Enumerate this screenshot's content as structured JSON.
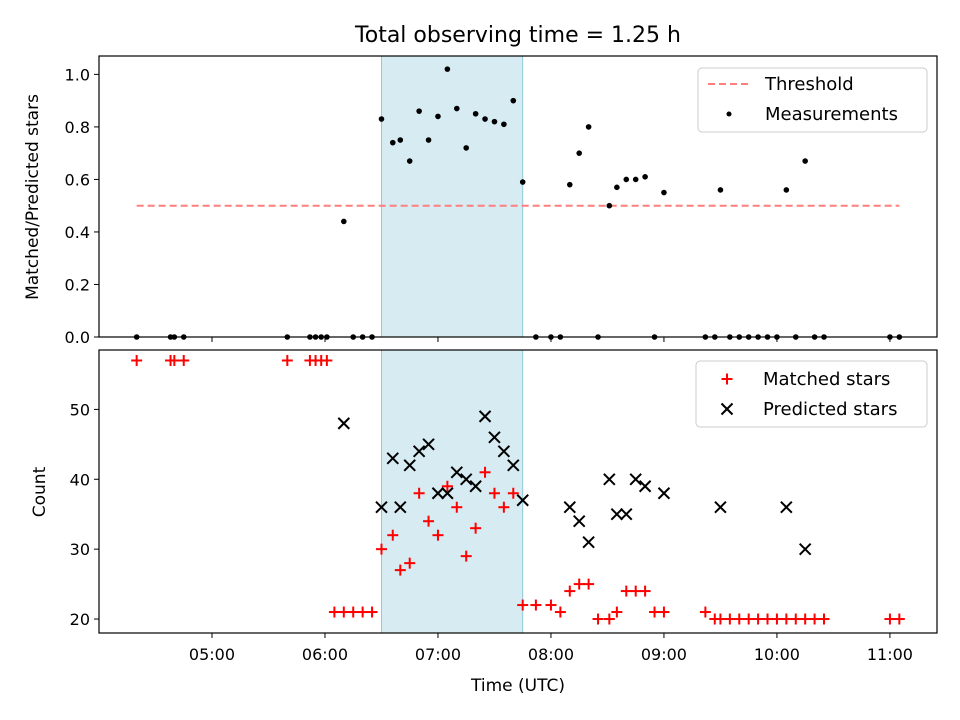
{
  "figure_title": "Total observing time = 1.25 h",
  "chart_data": [
    {
      "type": "scatter",
      "panel": "top",
      "ylabel": "Matched/Predicted stars",
      "ylim": [
        0,
        1.07
      ],
      "yticks": [
        0.0,
        0.2,
        0.4,
        0.6,
        0.8,
        1.0
      ],
      "ytick_labels": [
        "0.0",
        "0.2",
        "0.4",
        "0.6",
        "0.8",
        "1.0"
      ],
      "xlim": [
        "04:00",
        "11:25"
      ],
      "highlight_span": [
        "06:30",
        "07:45"
      ],
      "legend": "top-right",
      "series": [
        {
          "name": "Threshold",
          "kind": "dashed-line",
          "color": "#ff7f7f",
          "x": [
            "04:20",
            "11:05"
          ],
          "y": [
            0.5,
            0.5
          ]
        },
        {
          "name": "Measurements",
          "kind": "dots",
          "color": "#000000",
          "x": [
            "04:20",
            "04:38",
            "04:40",
            "04:45",
            "05:40",
            "05:52",
            "05:55",
            "05:58",
            "06:01",
            "06:10",
            "06:15",
            "06:20",
            "06:25",
            "06:30",
            "06:36",
            "06:40",
            "06:45",
            "06:50",
            "06:55",
            "07:00",
            "07:05",
            "07:10",
            "07:15",
            "07:20",
            "07:25",
            "07:30",
            "07:35",
            "07:40",
            "07:45",
            "07:52",
            "08:00",
            "08:05",
            "08:10",
            "08:15",
            "08:20",
            "08:25",
            "08:31",
            "08:35",
            "08:40",
            "08:45",
            "08:50",
            "08:55",
            "09:00",
            "09:22",
            "09:27",
            "09:30",
            "09:35",
            "09:40",
            "09:45",
            "09:50",
            "09:55",
            "10:00",
            "10:05",
            "10:10",
            "10:15",
            "10:20",
            "10:25",
            "11:00",
            "11:05"
          ],
          "y": [
            0,
            0,
            0,
            0,
            0,
            0,
            0,
            0,
            0,
            0.44,
            0,
            0,
            0,
            0.83,
            0.74,
            0.75,
            0.67,
            0.86,
            0.75,
            0.84,
            1.02,
            0.87,
            0.72,
            0.85,
            0.83,
            0.82,
            0.81,
            0.9,
            0.59,
            0,
            0,
            0,
            0.58,
            0.7,
            0.8,
            0,
            0.5,
            0.57,
            0.6,
            0.6,
            0.61,
            0,
            0.55,
            0,
            0,
            0.56,
            0,
            0,
            0,
            0,
            0,
            0,
            0.56,
            0,
            0.67,
            0,
            0,
            0,
            0
          ]
        }
      ]
    },
    {
      "type": "scatter",
      "panel": "bottom",
      "xlabel": "Time (UTC)",
      "ylabel": "Count",
      "ylim": [
        18,
        58.5
      ],
      "yticks": [
        20,
        30,
        40,
        50
      ],
      "ytick_labels": [
        "20",
        "30",
        "40",
        "50"
      ],
      "xlim": [
        "04:00",
        "11:25"
      ],
      "xticks": [
        "05:00",
        "06:00",
        "07:00",
        "08:00",
        "09:00",
        "10:00",
        "11:00"
      ],
      "highlight_span": [
        "06:30",
        "07:45"
      ],
      "legend": "top-right",
      "series": [
        {
          "name": "Matched stars",
          "kind": "plus",
          "color": "#ff0000",
          "x": [
            "04:20",
            "04:38",
            "04:40",
            "04:45",
            "05:40",
            "05:52",
            "05:55",
            "05:58",
            "06:01",
            "06:05",
            "06:10",
            "06:15",
            "06:20",
            "06:25",
            "06:30",
            "06:36",
            "06:40",
            "06:45",
            "06:50",
            "06:55",
            "07:00",
            "07:05",
            "07:10",
            "07:15",
            "07:20",
            "07:25",
            "07:30",
            "07:35",
            "07:40",
            "07:45",
            "07:52",
            "08:00",
            "08:05",
            "08:10",
            "08:15",
            "08:20",
            "08:25",
            "08:31",
            "08:35",
            "08:40",
            "08:45",
            "08:50",
            "08:55",
            "09:00",
            "09:22",
            "09:27",
            "09:30",
            "09:35",
            "09:40",
            "09:45",
            "09:50",
            "09:55",
            "10:00",
            "10:05",
            "10:10",
            "10:15",
            "10:20",
            "10:25",
            "11:00",
            "11:05"
          ],
          "y": [
            57,
            57,
            57,
            57,
            57,
            57,
            57,
            57,
            57,
            21,
            21,
            21,
            21,
            21,
            30,
            32,
            27,
            28,
            38,
            34,
            32,
            39,
            36,
            29,
            33,
            41,
            38,
            36,
            38,
            22,
            22,
            22,
            21,
            24,
            25,
            25,
            20,
            20,
            21,
            24,
            24,
            24,
            21,
            21,
            21,
            20,
            20,
            20,
            20,
            20,
            20,
            20,
            20,
            20,
            20,
            20,
            20,
            20,
            20,
            20
          ]
        },
        {
          "name": "Predicted stars",
          "kind": "x",
          "color": "#000000",
          "x": [
            "06:10",
            "06:30",
            "06:36",
            "06:40",
            "06:45",
            "06:50",
            "06:55",
            "07:00",
            "07:05",
            "07:10",
            "07:15",
            "07:20",
            "07:25",
            "07:30",
            "07:35",
            "07:40",
            "07:45",
            "08:10",
            "08:15",
            "08:20",
            "08:31",
            "08:35",
            "08:40",
            "08:45",
            "08:50",
            "09:00",
            "09:30",
            "10:05",
            "10:15"
          ],
          "y": [
            48,
            36,
            43,
            36,
            42,
            44,
            45,
            38,
            38,
            41,
            40,
            39,
            49,
            46,
            44,
            42,
            37,
            36,
            34,
            31,
            40,
            35,
            35,
            40,
            39,
            38,
            36,
            36,
            30
          ]
        }
      ]
    }
  ]
}
